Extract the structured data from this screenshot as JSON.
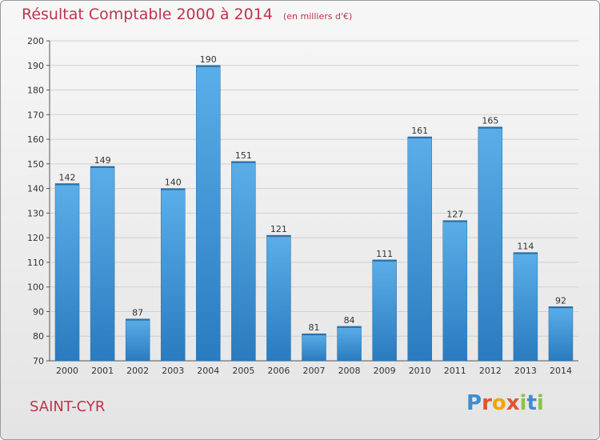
{
  "header": {
    "title": "Résultat Comptable 2000 à 2014",
    "subtitle": "(en milliers d'€)"
  },
  "footer": {
    "commune": "SAINT-CYR",
    "logo_letters": [
      "P",
      "r",
      "o",
      "x",
      "i",
      "t",
      "i"
    ]
  },
  "colors": {
    "title": "#c0334e",
    "bar_top": "#5aaee8",
    "bar_bottom": "#2a7bbf",
    "logo": [
      "#3c8dd0",
      "#e2532d",
      "#f0a500",
      "#e2532d",
      "#8bc34a",
      "#3c8dd0",
      "#8bc34a"
    ]
  },
  "chart_data": {
    "type": "bar",
    "title": "Résultat Comptable 2000 à 2014",
    "subtitle": "(en milliers d'€)",
    "categories": [
      "2000",
      "2001",
      "2002",
      "2003",
      "2004",
      "2005",
      "2006",
      "2007",
      "2008",
      "2009",
      "2010",
      "2011",
      "2012",
      "2013",
      "2014"
    ],
    "values": [
      142,
      149,
      87,
      140,
      190,
      151,
      121,
      81,
      84,
      111,
      161,
      127,
      165,
      114,
      92
    ],
    "ylim": [
      70,
      200
    ],
    "yticks": [
      70,
      80,
      90,
      100,
      110,
      120,
      130,
      140,
      150,
      160,
      170,
      180,
      190,
      200
    ],
    "grid": true,
    "data_labels": true
  }
}
